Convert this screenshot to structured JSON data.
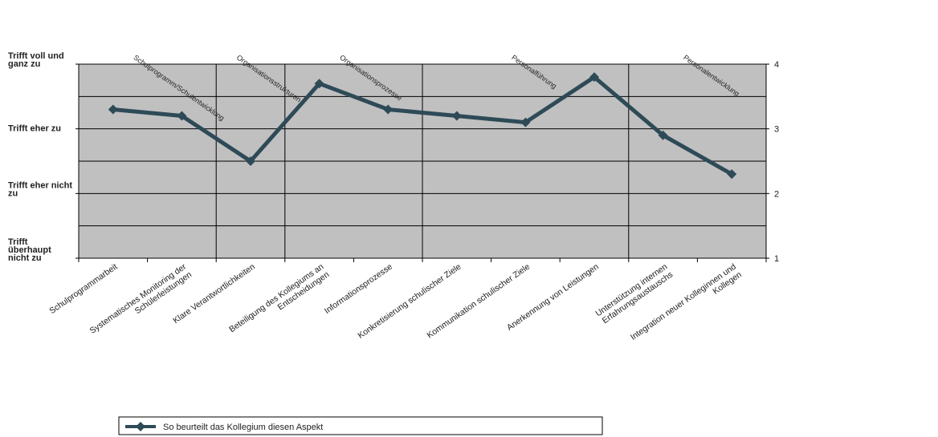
{
  "chart_data": {
    "type": "line",
    "categories": [
      "Schulprogrammarbeit",
      "Systematisches Monitoring der Schülerleistungen",
      "Klare Verantwortlichkeiten",
      "Beteiligung des Kollegiums an Entscheidungen",
      "Informationsprozesse",
      "Konkretisierung schulischer Ziele",
      "Kommunikation schulischer Ziele",
      "Anerkennung von Leistungen",
      "Unterstützung internen Erfahrungsaustauschs",
      "Integration neuer Kolleginnen und Kollegen"
    ],
    "groups": [
      {
        "label": "Schulprogramm/Schulentwicklung",
        "start": 0,
        "end": 1
      },
      {
        "label": "Organisationsstrukturen",
        "start": 2,
        "end": 2
      },
      {
        "label": "Organisationsprozesse",
        "start": 3,
        "end": 4
      },
      {
        "label": "Personalführung",
        "start": 5,
        "end": 7
      },
      {
        "label": "Personalentwicklung",
        "start": 8,
        "end": 9
      }
    ],
    "series": [
      {
        "name": "So beurteilt das Kollegium diesen Aspekt",
        "values": [
          3.3,
          3.2,
          2.5,
          3.7,
          3.3,
          3.2,
          3.1,
          3.8,
          2.9,
          2.3
        ]
      }
    ],
    "ylim": [
      1,
      4
    ],
    "yticks_right": [
      "1",
      "2",
      "3",
      "4"
    ],
    "ylabels_left": [
      {
        "value": 4,
        "text": "Trifft voll und ganz zu"
      },
      {
        "value": 3,
        "text": "Trifft eher zu"
      },
      {
        "value": 2,
        "text": "Trifft eher nicht zu"
      },
      {
        "value": 1,
        "text": "Trifft überhaupt nicht zu"
      }
    ],
    "colors": {
      "line": "#2e4a57",
      "plot_bg": "#c0c0c0",
      "grid": "#000000"
    },
    "legend_placement": "bottom-left"
  }
}
